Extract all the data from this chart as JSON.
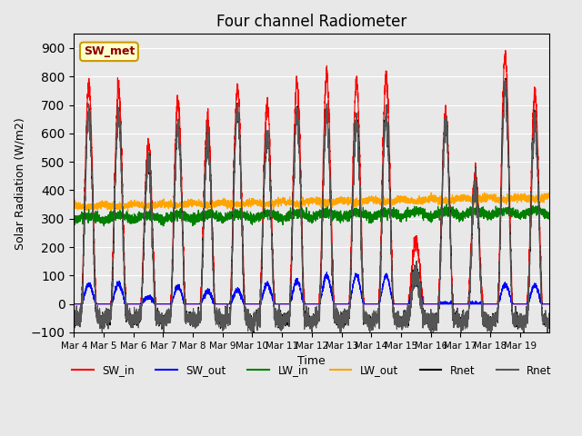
{
  "title": "Four channel Radiometer",
  "xlabel": "Time",
  "ylabel": "Solar Radiation (W/m2)",
  "ylim": [
    -100,
    950
  ],
  "yticks": [
    -100,
    0,
    100,
    200,
    300,
    400,
    500,
    600,
    700,
    800,
    900
  ],
  "x_tick_labels": [
    "Mar 4",
    "Mar 5",
    "Mar 6",
    "Mar 7",
    "Mar 8",
    "Mar 9",
    "Mar 10",
    "Mar 11",
    "Mar 12",
    "Mar 13",
    "Mar 14",
    "Mar 15",
    "Mar 16",
    "Mar 17",
    "Mar 18",
    "Mar 19"
  ],
  "background_color": "#e8e8e8",
  "legend_bg": "#ffffcc",
  "legend_border": "#cc9900",
  "sw_in_peaks": [
    770,
    755,
    560,
    715,
    650,
    760,
    700,
    775,
    800,
    775,
    795,
    220,
    675,
    450,
    870,
    740
  ],
  "sw_out_peaks": [
    70,
    70,
    25,
    60,
    45,
    50,
    70,
    80,
    100,
    100,
    100,
    80,
    0,
    0,
    70,
    65
  ],
  "num_days": 16,
  "points_per_day": 288,
  "seed": 42
}
